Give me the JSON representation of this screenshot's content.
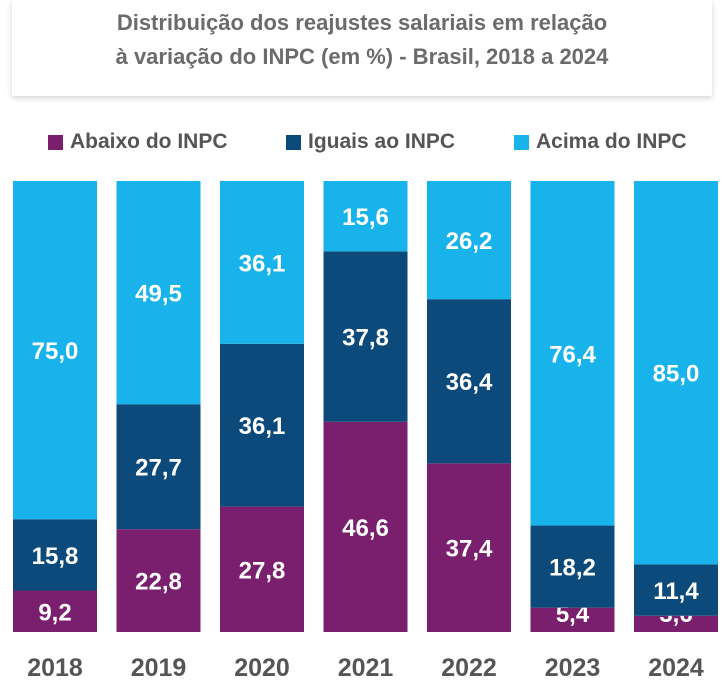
{
  "header": {
    "title_line1": "Distribuição dos reajustes salariais em relação",
    "title_line2": "à variação do INPC (em %) - Brasil, 2018 a 2024"
  },
  "colors": {
    "abaixo": "#7a1f6e",
    "iguais": "#0b4a7a",
    "acima": "#17b3ea"
  },
  "legend": [
    {
      "key": "abaixo",
      "label": "Abaixo do INPC"
    },
    {
      "key": "iguais",
      "label": "Iguais ao INPC"
    },
    {
      "key": "acima",
      "label": "Acima do INPC"
    }
  ],
  "chart_data": {
    "type": "bar",
    "stacked": true,
    "categories": [
      "2018",
      "2019",
      "2020",
      "2021",
      "2022",
      "2023",
      "2024"
    ],
    "series": [
      {
        "name": "Abaixo do INPC",
        "key": "abaixo",
        "values": [
          9.2,
          22.8,
          27.8,
          46.6,
          37.4,
          5.4,
          3.6
        ]
      },
      {
        "name": "Iguais ao INPC",
        "key": "iguais",
        "values": [
          15.8,
          27.7,
          36.1,
          37.8,
          36.4,
          18.2,
          11.4
        ]
      },
      {
        "name": "Acima do INPC",
        "key": "acima",
        "values": [
          75.0,
          49.5,
          36.1,
          15.6,
          26.2,
          76.4,
          85.0
        ]
      }
    ],
    "labels": [
      [
        "9,2",
        "22,8",
        "27,8",
        "46,6",
        "37,4",
        "5,4",
        "3,6"
      ],
      [
        "15,8",
        "27,7",
        "36,1",
        "37,8",
        "36,4",
        "18,2",
        "11,4"
      ],
      [
        "75,0",
        "49,5",
        "36,1",
        "15,6",
        "26,2",
        "76,4",
        "85,0"
      ]
    ],
    "title": "Distribuição dos reajustes salariais em relação à variação do INPC (em %) - Brasil, 2018 a 2024",
    "ylim": [
      0,
      100
    ],
    "grid": false,
    "legend_position": "top"
  }
}
